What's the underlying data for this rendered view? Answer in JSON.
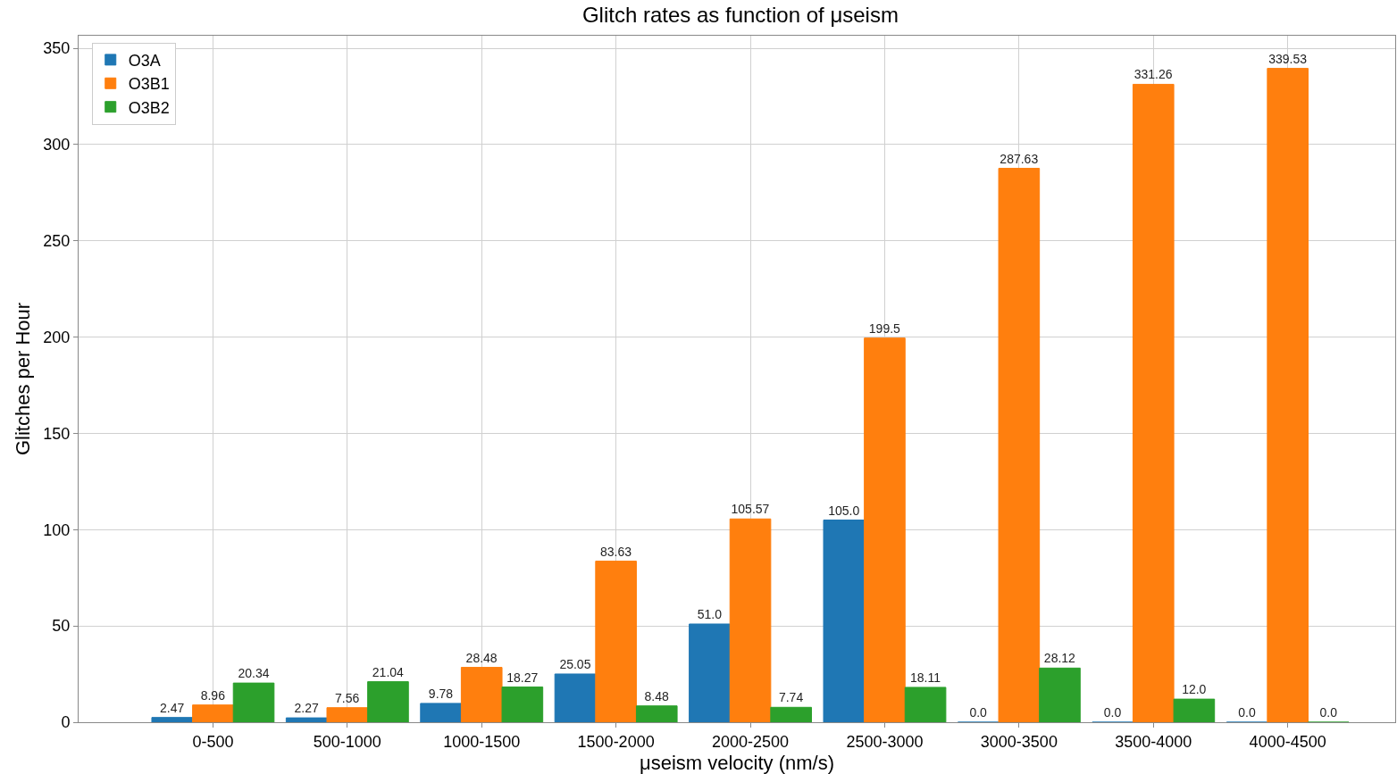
{
  "chart_data": {
    "type": "bar",
    "title": "Glitch rates as function of μseism",
    "xlabel": "μseism velocity (nm/s)",
    "ylabel": "Glitches per Hour",
    "categories": [
      "0-500",
      "500-1000",
      "1000-1500",
      "1500-2000",
      "2000-2500",
      "2500-3000",
      "3000-3500",
      "3500-4000",
      "4000-4500"
    ],
    "series": [
      {
        "name": "O3A",
        "color": "#1f77b4",
        "values": [
          2.47,
          2.27,
          9.78,
          25.05,
          51.0,
          105.0,
          0.0,
          0.0,
          0.0
        ],
        "value_labels": [
          "2.47",
          "2.27",
          "9.78",
          "25.05",
          "51.0",
          "105.0",
          "0.0",
          "0.0",
          "0.0"
        ]
      },
      {
        "name": "O3B1",
        "color": "#ff7f0e",
        "values": [
          8.96,
          7.56,
          28.48,
          83.63,
          105.57,
          199.5,
          287.63,
          331.26,
          339.53
        ],
        "value_labels": [
          "8.96",
          "7.56",
          "28.48",
          "83.63",
          "105.57",
          "199.5",
          "287.63",
          "331.26",
          "339.53"
        ]
      },
      {
        "name": "O3B2",
        "color": "#2ca02c",
        "values": [
          20.34,
          21.04,
          18.27,
          8.48,
          7.74,
          18.11,
          28.12,
          12.0,
          0.0
        ],
        "value_labels": [
          "20.34",
          "21.04",
          "18.27",
          "8.48",
          "7.74",
          "18.11",
          "28.12",
          "12.0",
          "0.0"
        ]
      }
    ],
    "ylim": [
      0,
      356.5
    ],
    "yticks": [
      0,
      50,
      100,
      150,
      200,
      250,
      300,
      350
    ],
    "grid": true,
    "legend": "top left"
  }
}
